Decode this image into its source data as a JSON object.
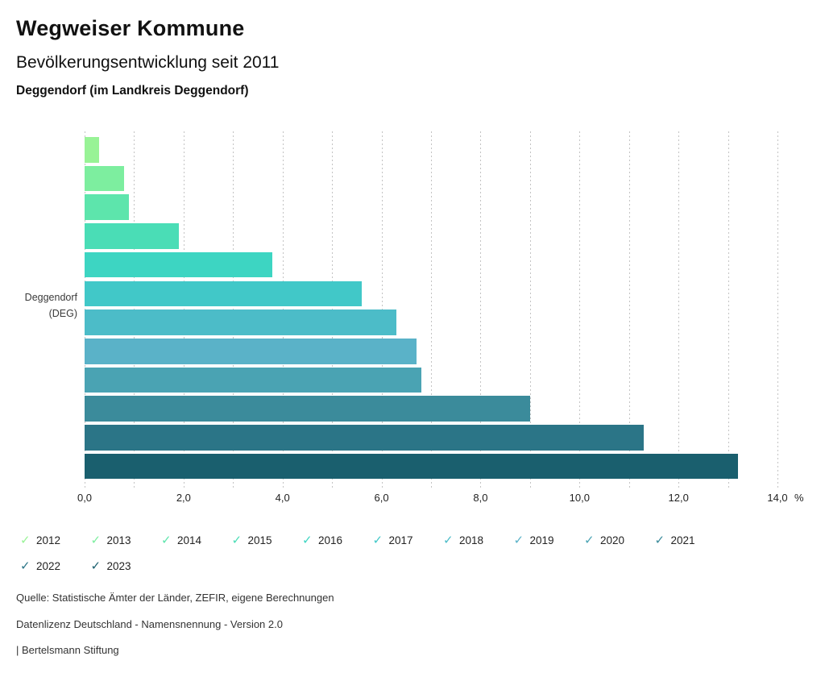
{
  "header": {
    "title": "Wegweiser Kommune",
    "subtitle": "Bevölkerungsentwicklung seit 2011",
    "location": "Deggendorf (im Landkreis Deggendorf)"
  },
  "chart_data": {
    "type": "bar",
    "orientation": "horizontal",
    "title": "Bevölkerungsentwicklung seit 2011",
    "group_label_line1": "Deggendorf",
    "group_label_line2": "(DEG)",
    "categories": [
      "2012",
      "2013",
      "2014",
      "2015",
      "2016",
      "2017",
      "2018",
      "2019",
      "2020",
      "2021",
      "2022",
      "2023"
    ],
    "values": [
      0.3,
      0.8,
      0.9,
      1.9,
      3.8,
      5.6,
      6.3,
      6.7,
      6.8,
      9.0,
      11.3,
      13.2
    ],
    "colors": [
      "#98f396",
      "#7dee9f",
      "#5de5ac",
      "#4addb6",
      "#3dd5c2",
      "#41c8c8",
      "#4cbcc8",
      "#5ab2c8",
      "#4aa3b3",
      "#3b8b9b",
      "#2b7587",
      "#1a5f6e"
    ],
    "x_ticks": [
      "0,0",
      "2,0",
      "4,0",
      "6,0",
      "8,0",
      "10,0",
      "12,0",
      "14,0"
    ],
    "x_unit": "%",
    "xlim": [
      0,
      14
    ],
    "grid": "vertical dotted every 1.0",
    "legend_position": "bottom"
  },
  "legend": {
    "items": [
      {
        "label": "2012",
        "color": "#98f396"
      },
      {
        "label": "2013",
        "color": "#7dee9f"
      },
      {
        "label": "2014",
        "color": "#5de5ac"
      },
      {
        "label": "2015",
        "color": "#4addb6"
      },
      {
        "label": "2016",
        "color": "#3dd5c2"
      },
      {
        "label": "2017",
        "color": "#41c8c8"
      },
      {
        "label": "2018",
        "color": "#4cbcc8"
      },
      {
        "label": "2019",
        "color": "#5ab2c8"
      },
      {
        "label": "2020",
        "color": "#4aa3b3"
      },
      {
        "label": "2021",
        "color": "#3b8b9b"
      },
      {
        "label": "2022",
        "color": "#2b7587"
      },
      {
        "label": "2023",
        "color": "#1a5f6e"
      }
    ],
    "check_icon": "✓"
  },
  "footer": {
    "lines": [
      "Quelle: Statistische Ämter der Länder, ZEFIR, eigene Berechnungen",
      "Datenlizenz Deutschland - Namensnennung - Version 2.0",
      "| Bertelsmann Stiftung"
    ]
  }
}
